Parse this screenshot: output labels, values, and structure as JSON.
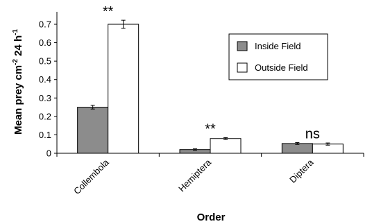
{
  "chart_data": {
    "type": "bar",
    "categories": [
      "Collembola",
      "Hemiptera",
      "Diptera"
    ],
    "series": [
      {
        "name": "Inside Field",
        "color": "#8c8c8c",
        "values": [
          0.25,
          0.02,
          0.053
        ],
        "errors": [
          0.01,
          0.004,
          0.005
        ]
      },
      {
        "name": "Outside Field",
        "color": "#ffffff",
        "values": [
          0.7,
          0.08,
          0.05
        ],
        "errors": [
          0.022,
          0.005,
          0.006
        ]
      }
    ],
    "significance": [
      "**",
      "**",
      "ns"
    ],
    "xlabel": "Order",
    "ylabel_main": "Mean prey cm",
    "ylabel_sup1": "-2",
    "ylabel_mid": " 24 h",
    "ylabel_sup2": "-1",
    "yticks": [
      "0",
      "0.1",
      "0.2",
      "0.3",
      "0.4",
      "0.5",
      "0.6",
      "0.7"
    ],
    "ylim": [
      0,
      0.7
    ],
    "legend_position": "top-right",
    "grid": false
  }
}
